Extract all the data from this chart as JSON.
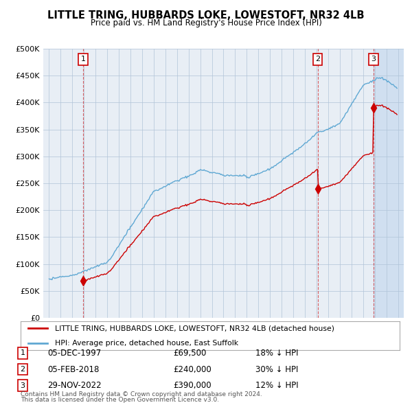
{
  "title": "LITTLE TRING, HUBBARDS LOKE, LOWESTOFT, NR32 4LB",
  "subtitle": "Price paid vs. HM Land Registry's House Price Index (HPI)",
  "legend_property": "LITTLE TRING, HUBBARDS LOKE, LOWESTOFT, NR32 4LB (detached house)",
  "legend_hpi": "HPI: Average price, detached house, East Suffolk",
  "footer1": "Contains HM Land Registry data © Crown copyright and database right 2024.",
  "footer2": "This data is licensed under the Open Government Licence v3.0.",
  "transactions": [
    {
      "label": "1",
      "date": "05-DEC-1997",
      "price": 69500,
      "pct": "18%",
      "dir": "↓",
      "year": 1997.92
    },
    {
      "label": "2",
      "date": "05-FEB-2018",
      "price": 240000,
      "pct": "30%",
      "dir": "↓",
      "year": 2018.09
    },
    {
      "label": "3",
      "date": "29-NOV-2022",
      "price": 390000,
      "pct": "12%",
      "dir": "↓",
      "year": 2022.91
    }
  ],
  "ylim": [
    0,
    500000
  ],
  "yticks": [
    0,
    50000,
    100000,
    150000,
    200000,
    250000,
    300000,
    350000,
    400000,
    450000,
    500000
  ],
  "ytick_labels": [
    "£0",
    "£50K",
    "£100K",
    "£150K",
    "£200K",
    "£250K",
    "£300K",
    "£350K",
    "£400K",
    "£450K",
    "£500K"
  ],
  "hpi_color": "#5fa8d3",
  "property_color": "#cc0000",
  "vline_color": "#cc0000",
  "bg_chart": "#e8eef5",
  "background_color": "#ffffff",
  "grid_color": "#b0c4d8",
  "shade_color": "#d0dff0"
}
